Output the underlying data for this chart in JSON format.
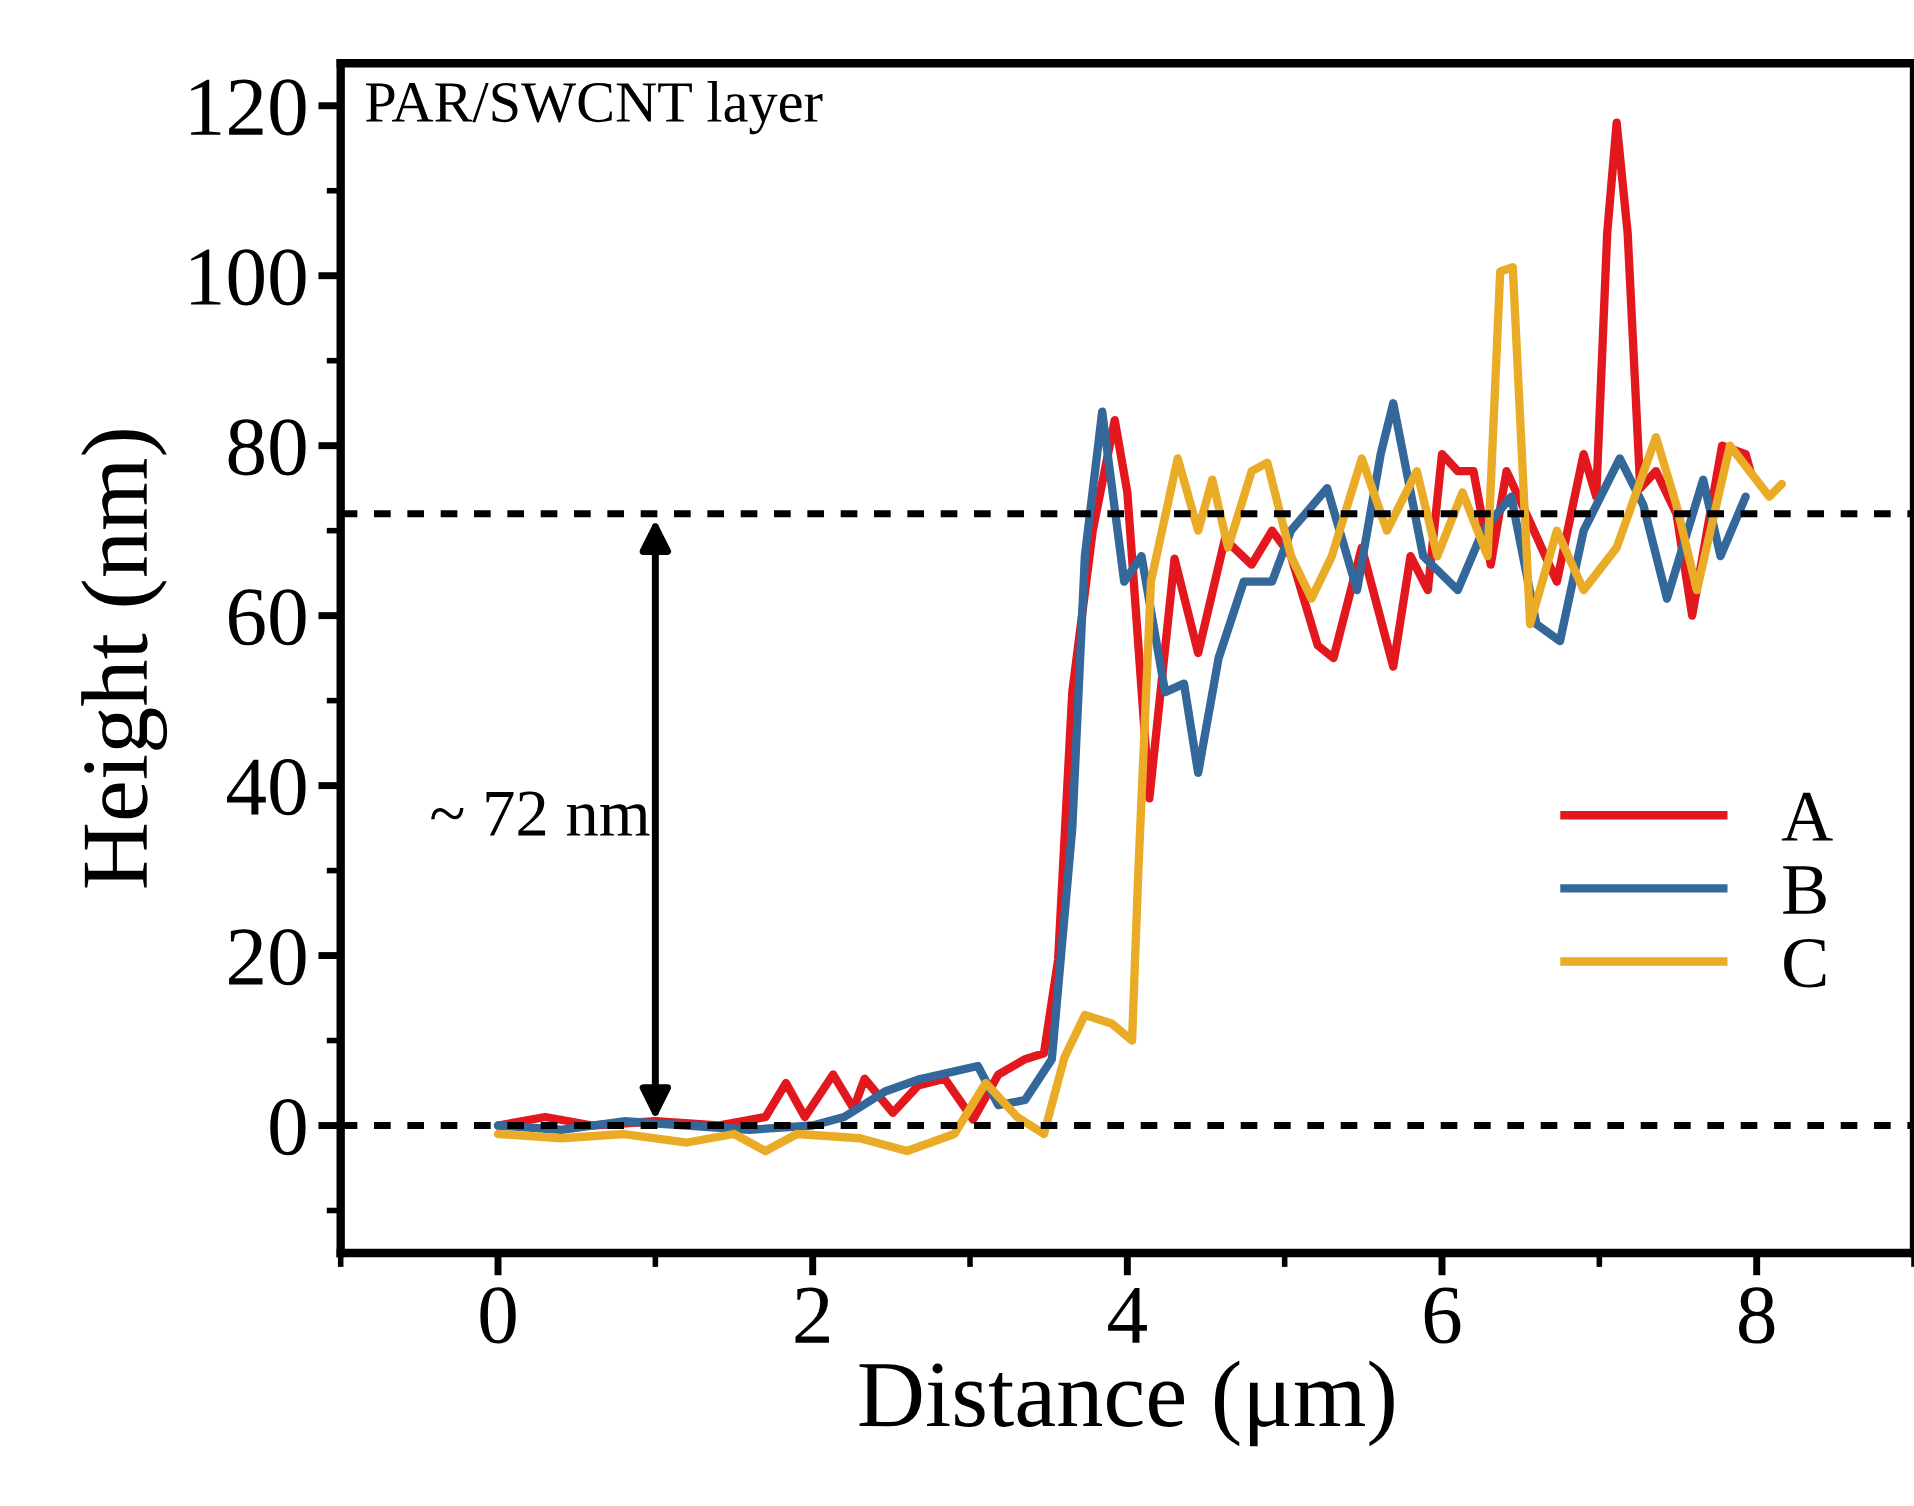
{
  "chart_data": {
    "type": "line",
    "xlabel": "Distance (μm)",
    "ylabel": "Height (nm)",
    "xlim": [
      -1,
      9
    ],
    "ylim": [
      -15,
      125
    ],
    "xticks": [
      0,
      2,
      4,
      6,
      8
    ],
    "yticks": [
      0,
      20,
      40,
      60,
      80,
      100,
      120
    ],
    "grid": false,
    "legend": "right",
    "line_style": "solid",
    "marker": "none",
    "annotations": [
      "PAR/SWCNT layer",
      "~ 72 nm"
    ],
    "ref_lines": [
      {
        "axis": "y",
        "value": 72,
        "label": null,
        "color": "#000000",
        "line_style": "dashed"
      },
      {
        "axis": "y",
        "value": 0,
        "label": null,
        "color": "#000000",
        "line_style": "dashed"
      }
    ],
    "series": [
      {
        "name": "A",
        "color": "#e3181f",
        "x": [
          0,
          0.3,
          0.6,
          1.0,
          1.4,
          1.7,
          1.83,
          1.95,
          2.13,
          2.26,
          2.33,
          2.51,
          2.67,
          2.84,
          3.02,
          3.18,
          3.35,
          3.47,
          3.56,
          3.65,
          3.78,
          3.92,
          4.0,
          4.14,
          4.3,
          4.45,
          4.62,
          4.79,
          4.92,
          5.04,
          5.21,
          5.31,
          5.49,
          5.69,
          5.8,
          5.91,
          6.0,
          6.1,
          6.2,
          6.31,
          6.41,
          6.56,
          6.73,
          6.9,
          6.98,
          7.05,
          7.11,
          7.18,
          7.26,
          7.36,
          7.49,
          7.59,
          7.78,
          7.93,
          7.96
        ],
        "values": [
          0,
          1,
          0,
          0.5,
          0,
          1,
          5,
          1,
          6,
          2,
          5.5,
          1.5,
          4.7,
          5.5,
          0.7,
          6,
          7.8,
          8.5,
          19.5,
          51,
          70,
          83,
          74.5,
          38.5,
          66.7,
          55.6,
          69,
          66,
          70,
          67,
          56.5,
          55,
          68,
          54,
          67,
          63,
          79,
          77,
          77,
          66,
          77,
          71,
          64,
          79,
          74,
          105,
          118,
          105,
          75,
          77,
          72,
          60,
          80,
          79,
          77
        ]
      },
      {
        "name": "B",
        "color": "#34679a",
        "x": [
          0,
          0.4,
          0.8,
          1.2,
          1.6,
          2.0,
          2.2,
          2.46,
          2.67,
          3.05,
          3.18,
          3.35,
          3.52,
          3.65,
          3.73,
          3.84,
          3.98,
          4.09,
          4.24,
          4.36,
          4.45,
          4.58,
          4.74,
          4.92,
          5.04,
          5.27,
          5.46,
          5.61,
          5.69,
          5.88,
          6.1,
          6.26,
          6.44,
          6.6,
          6.75,
          6.9,
          7.13,
          7.28,
          7.43,
          7.66,
          7.77,
          7.93
        ],
        "values": [
          0,
          -0.5,
          0.5,
          0,
          -0.5,
          0,
          1,
          4,
          5.4,
          7,
          2.4,
          3,
          7.8,
          35,
          67,
          84,
          64,
          67,
          51,
          52,
          41.5,
          55,
          64,
          64,
          70,
          75,
          63,
          79,
          85,
          67,
          63,
          70,
          74,
          59,
          57,
          70,
          78.5,
          73,
          62,
          76,
          67,
          74
        ]
      },
      {
        "name": "C",
        "color": "#eaac26",
        "x": [
          0,
          0.4,
          0.8,
          1.2,
          1.5,
          1.7,
          1.9,
          2.3,
          2.6,
          2.9,
          3.1,
          3.3,
          3.47,
          3.6,
          3.73,
          3.9,
          4.03,
          4.07,
          4.15,
          4.32,
          4.45,
          4.54,
          4.64,
          4.79,
          4.89,
          5.04,
          5.17,
          5.3,
          5.49,
          5.65,
          5.84,
          5.97,
          6.13,
          6.29,
          6.37,
          6.45,
          6.56,
          6.73,
          6.9,
          7.11,
          7.36,
          7.49,
          7.62,
          7.83,
          8.08,
          8.16
        ],
        "values": [
          -1,
          -1.5,
          -1,
          -2,
          -1,
          -3,
          -1,
          -1.5,
          -3,
          -1,
          5,
          1,
          -1,
          8,
          13,
          12,
          10,
          30,
          64,
          78.5,
          70,
          76,
          68,
          77,
          78,
          67,
          62,
          67,
          78.5,
          70,
          77,
          67,
          74.5,
          67,
          100.5,
          101,
          59,
          70,
          63,
          68,
          81,
          73,
          63,
          80,
          74,
          75.5
        ]
      }
    ]
  }
}
